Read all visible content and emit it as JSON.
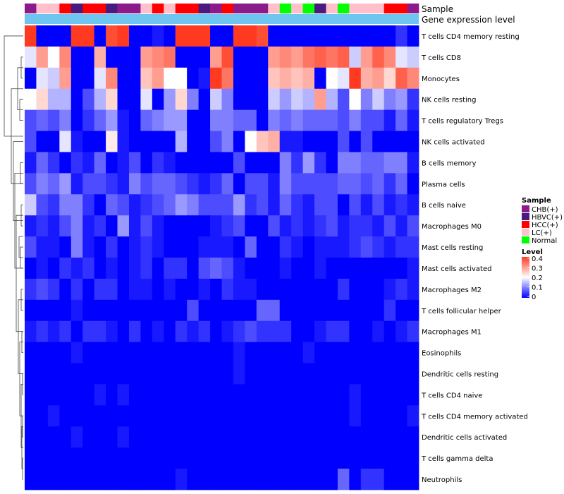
{
  "annotation_labels": {
    "sample": "Sample",
    "gene_expression": "Gene expression level"
  },
  "legend": {
    "sample_title": "Sample",
    "sample_entries": [
      {
        "label": "CHB(+)",
        "color": "#8B1A8B"
      },
      {
        "label": "HBVC(+)",
        "color": "#4B1A7F"
      },
      {
        "label": "HCC(+)",
        "color": "#FF0000"
      },
      {
        "label": "LC(+)",
        "color": "#FFC0CB"
      },
      {
        "label": "Normal",
        "color": "#00FF00"
      }
    ],
    "level_title": "Level",
    "level_ticks": [
      "0.4",
      "0.3",
      "0.2",
      "0.1",
      "0"
    ]
  },
  "colors": {
    "low": "#0000FF",
    "mid": "#FFFFFF",
    "high": "#FF3A20",
    "gene_bar": "#6EC6F0"
  },
  "chart_data": {
    "type": "heatmap",
    "title": "",
    "value_range": [
      0,
      0.4
    ],
    "rows": [
      "T cells CD4 memory resting",
      "T cells CD8",
      "Monocytes",
      "NK cells resting",
      "T cells regulatory  Tregs",
      "NK cells activated",
      "B cells memory",
      "Plasma cells",
      "B cells naive",
      "Macrophages M0",
      "Mast cells resting",
      "Mast cells activated",
      "Macrophages M2",
      "T cells follicular helper",
      "Macrophages M1",
      "Eosinophils",
      "Dendritic cells resting",
      "T cells CD4 naive",
      "T cells CD4 memory activated",
      "Dendritic cells activated",
      "T cells gamma delta",
      "Neutrophils"
    ],
    "sample_groups": [
      "CHB(+)",
      "LC(+)",
      "LC(+)",
      "HCC(+)",
      "HBVC(+)",
      "HCC(+)",
      "HCC(+)",
      "HBVC(+)",
      "CHB(+)",
      "CHB(+)",
      "LC(+)",
      "HCC(+)",
      "LC(+)",
      "HCC(+)",
      "HCC(+)",
      "HBVC(+)",
      "CHB(+)",
      "HCC(+)",
      "CHB(+)",
      "CHB(+)",
      "CHB(+)",
      "LC(+)",
      "Normal",
      "LC(+)",
      "Normal",
      "HBVC(+)",
      "LC(+)",
      "Normal",
      "LC(+)",
      "LC(+)",
      "LC(+)",
      "HCC(+)",
      "HCC(+)",
      "CHB(+)"
    ],
    "values": [
      [
        0.4,
        0.0,
        0.0,
        0.0,
        0.4,
        0.4,
        0.0,
        0.38,
        0.4,
        0.0,
        0.0,
        0.02,
        0.0,
        0.4,
        0.4,
        0.4,
        0.0,
        0.0,
        0.4,
        0.4,
        0.38,
        0.0,
        0.0,
        0.0,
        0.0,
        0.0,
        0.0,
        0.0,
        0.0,
        0.0,
        0.0,
        0.0,
        0.04,
        0.0
      ],
      [
        0.18,
        0.3,
        0.2,
        0.32,
        0.0,
        0.0,
        0.28,
        0.0,
        0.0,
        0.0,
        0.3,
        0.32,
        0.34,
        0.0,
        0.0,
        0.0,
        0.3,
        0.38,
        0.0,
        0.0,
        0.0,
        0.3,
        0.32,
        0.3,
        0.34,
        0.36,
        0.34,
        0.36,
        0.16,
        0.3,
        0.36,
        0.32,
        0.18,
        0.16
      ],
      [
        0.0,
        0.18,
        0.16,
        0.3,
        0.0,
        0.0,
        0.18,
        0.32,
        0.0,
        0.0,
        0.26,
        0.3,
        0.2,
        0.2,
        0.0,
        0.02,
        0.4,
        0.34,
        0.0,
        0.0,
        0.0,
        0.26,
        0.28,
        0.26,
        0.28,
        0.0,
        0.2,
        0.18,
        0.4,
        0.28,
        0.3,
        0.24,
        0.36,
        0.32
      ],
      [
        0.2,
        0.24,
        0.14,
        0.14,
        0.0,
        0.06,
        0.14,
        0.24,
        0.0,
        0.0,
        0.18,
        0.0,
        0.12,
        0.24,
        0.1,
        0.0,
        0.16,
        0.1,
        0.0,
        0.0,
        0.0,
        0.16,
        0.12,
        0.16,
        0.14,
        0.3,
        0.14,
        0.06,
        0.2,
        0.1,
        0.16,
        0.1,
        0.12,
        0.04
      ],
      [
        0.06,
        0.08,
        0.06,
        0.1,
        0.0,
        0.04,
        0.08,
        0.12,
        0.02,
        0.0,
        0.08,
        0.1,
        0.12,
        0.12,
        0.0,
        0.0,
        0.1,
        0.1,
        0.08,
        0.08,
        0.0,
        0.1,
        0.08,
        0.1,
        0.08,
        0.08,
        0.08,
        0.06,
        0.1,
        0.06,
        0.06,
        0.02,
        0.08,
        0.02
      ],
      [
        0.06,
        0.0,
        0.0,
        0.18,
        0.02,
        0.0,
        0.0,
        0.22,
        0.02,
        0.0,
        0.0,
        0.0,
        0.0,
        0.14,
        0.0,
        0.0,
        0.06,
        0.1,
        0.0,
        0.2,
        0.26,
        0.28,
        0.02,
        0.02,
        0.0,
        0.0,
        0.0,
        0.06,
        0.0,
        0.06,
        0.0,
        0.0,
        0.0,
        0.0
      ],
      [
        0.02,
        0.08,
        0.04,
        0.0,
        0.04,
        0.02,
        0.08,
        0.0,
        0.02,
        0.06,
        0.0,
        0.04,
        0.02,
        0.0,
        0.0,
        0.0,
        0.0,
        0.0,
        0.06,
        0.0,
        0.0,
        0.0,
        0.1,
        0.04,
        0.12,
        0.04,
        0.0,
        0.1,
        0.1,
        0.08,
        0.08,
        0.1,
        0.1,
        0.02
      ],
      [
        0.06,
        0.1,
        0.08,
        0.12,
        0.02,
        0.06,
        0.06,
        0.04,
        0.02,
        0.1,
        0.06,
        0.08,
        0.08,
        0.06,
        0.04,
        0.02,
        0.04,
        0.08,
        0.0,
        0.06,
        0.06,
        0.02,
        0.1,
        0.06,
        0.06,
        0.06,
        0.06,
        0.08,
        0.08,
        0.06,
        0.08,
        0.04,
        0.08,
        0.0
      ],
      [
        0.16,
        0.06,
        0.04,
        0.1,
        0.1,
        0.04,
        0.0,
        0.08,
        0.06,
        0.02,
        0.04,
        0.06,
        0.08,
        0.12,
        0.1,
        0.06,
        0.06,
        0.06,
        0.12,
        0.04,
        0.06,
        0.02,
        0.08,
        0.04,
        0.02,
        0.06,
        0.06,
        0.0,
        0.06,
        0.02,
        0.06,
        0.02,
        0.04,
        0.02
      ],
      [
        0.02,
        0.04,
        0.02,
        0.06,
        0.1,
        0.02,
        0.04,
        0.0,
        0.12,
        0.02,
        0.06,
        0.02,
        0.0,
        0.0,
        0.0,
        0.0,
        0.02,
        0.04,
        0.06,
        0.0,
        0.0,
        0.06,
        0.02,
        0.04,
        0.02,
        0.04,
        0.06,
        0.02,
        0.04,
        0.04,
        0.02,
        0.06,
        0.02,
        0.06
      ],
      [
        0.06,
        0.02,
        0.02,
        0.0,
        0.1,
        0.02,
        0.0,
        0.04,
        0.0,
        0.02,
        0.04,
        0.02,
        0.0,
        0.0,
        0.0,
        0.02,
        0.02,
        0.02,
        0.0,
        0.08,
        0.0,
        0.0,
        0.04,
        0.02,
        0.0,
        0.02,
        0.02,
        0.02,
        0.04,
        0.06,
        0.04,
        0.02,
        0.04,
        0.04
      ],
      [
        0.0,
        0.02,
        0.0,
        0.04,
        0.02,
        0.04,
        0.0,
        0.02,
        0.0,
        0.02,
        0.04,
        0.0,
        0.04,
        0.04,
        0.0,
        0.06,
        0.08,
        0.06,
        0.02,
        0.0,
        0.0,
        0.0,
        0.02,
        0.0,
        0.0,
        0.02,
        0.0,
        0.0,
        0.0,
        0.0,
        0.0,
        0.0,
        0.0,
        0.02
      ],
      [
        0.04,
        0.06,
        0.04,
        0.0,
        0.04,
        0.0,
        0.04,
        0.04,
        0.0,
        0.02,
        0.02,
        0.0,
        0.02,
        0.0,
        0.0,
        0.02,
        0.0,
        0.04,
        0.02,
        0.02,
        0.0,
        0.0,
        0.0,
        0.0,
        0.0,
        0.0,
        0.0,
        0.04,
        0.0,
        0.0,
        0.0,
        0.02,
        0.04,
        0.02
      ],
      [
        0.0,
        0.0,
        0.0,
        0.0,
        0.02,
        0.0,
        0.0,
        0.0,
        0.0,
        0.0,
        0.0,
        0.0,
        0.0,
        0.0,
        0.06,
        0.0,
        0.0,
        0.0,
        0.0,
        0.0,
        0.08,
        0.08,
        0.0,
        0.0,
        0.0,
        0.0,
        0.0,
        0.0,
        0.0,
        0.0,
        0.0,
        0.04,
        0.0,
        0.0
      ],
      [
        0.02,
        0.04,
        0.02,
        0.04,
        0.0,
        0.04,
        0.04,
        0.02,
        0.0,
        0.04,
        0.0,
        0.02,
        0.0,
        0.04,
        0.02,
        0.04,
        0.0,
        0.02,
        0.04,
        0.06,
        0.04,
        0.04,
        0.04,
        0.0,
        0.0,
        0.02,
        0.04,
        0.04,
        0.0,
        0.0,
        0.02,
        0.0,
        0.02,
        0.04
      ],
      [
        0.0,
        0.0,
        0.0,
        0.0,
        0.02,
        0.0,
        0.0,
        0.0,
        0.0,
        0.0,
        0.0,
        0.0,
        0.0,
        0.0,
        0.0,
        0.0,
        0.0,
        0.0,
        0.02,
        0.0,
        0.0,
        0.0,
        0.0,
        0.0,
        0.02,
        0.0,
        0.0,
        0.0,
        0.0,
        0.0,
        0.0,
        0.0,
        0.0,
        0.0
      ],
      [
        0.0,
        0.0,
        0.0,
        0.0,
        0.0,
        0.0,
        0.0,
        0.0,
        0.0,
        0.0,
        0.0,
        0.0,
        0.0,
        0.0,
        0.0,
        0.0,
        0.0,
        0.0,
        0.02,
        0.0,
        0.0,
        0.0,
        0.0,
        0.0,
        0.0,
        0.0,
        0.0,
        0.0,
        0.0,
        0.0,
        0.0,
        0.0,
        0.0,
        0.0
      ],
      [
        0.0,
        0.0,
        0.0,
        0.0,
        0.0,
        0.0,
        0.02,
        0.0,
        0.02,
        0.0,
        0.0,
        0.0,
        0.0,
        0.0,
        0.0,
        0.0,
        0.0,
        0.0,
        0.0,
        0.0,
        0.0,
        0.0,
        0.0,
        0.0,
        0.0,
        0.0,
        0.0,
        0.0,
        0.02,
        0.0,
        0.0,
        0.0,
        0.0,
        0.0
      ],
      [
        0.0,
        0.0,
        0.02,
        0.0,
        0.0,
        0.0,
        0.0,
        0.0,
        0.0,
        0.0,
        0.0,
        0.0,
        0.0,
        0.0,
        0.0,
        0.0,
        0.0,
        0.0,
        0.0,
        0.0,
        0.0,
        0.0,
        0.0,
        0.0,
        0.0,
        0.0,
        0.0,
        0.0,
        0.02,
        0.0,
        0.0,
        0.0,
        0.0,
        0.02
      ],
      [
        0.0,
        0.0,
        0.0,
        0.0,
        0.02,
        0.0,
        0.0,
        0.0,
        0.02,
        0.0,
        0.0,
        0.0,
        0.0,
        0.0,
        0.0,
        0.0,
        0.0,
        0.0,
        0.0,
        0.0,
        0.0,
        0.0,
        0.0,
        0.0,
        0.0,
        0.0,
        0.0,
        0.0,
        0.0,
        0.0,
        0.0,
        0.0,
        0.0,
        0.0
      ],
      [
        0.0,
        0.0,
        0.0,
        0.0,
        0.0,
        0.0,
        0.0,
        0.0,
        0.0,
        0.0,
        0.0,
        0.0,
        0.0,
        0.0,
        0.0,
        0.0,
        0.0,
        0.0,
        0.0,
        0.0,
        0.0,
        0.0,
        0.0,
        0.0,
        0.0,
        0.0,
        0.0,
        0.0,
        0.0,
        0.0,
        0.0,
        0.0,
        0.0,
        0.0
      ],
      [
        0.0,
        0.0,
        0.0,
        0.0,
        0.0,
        0.0,
        0.0,
        0.0,
        0.0,
        0.0,
        0.0,
        0.0,
        0.0,
        0.02,
        0.0,
        0.0,
        0.0,
        0.0,
        0.0,
        0.0,
        0.0,
        0.0,
        0.0,
        0.0,
        0.0,
        0.0,
        0.0,
        0.08,
        0.0,
        0.04,
        0.04,
        0.0,
        0.0,
        0.0
      ]
    ]
  }
}
